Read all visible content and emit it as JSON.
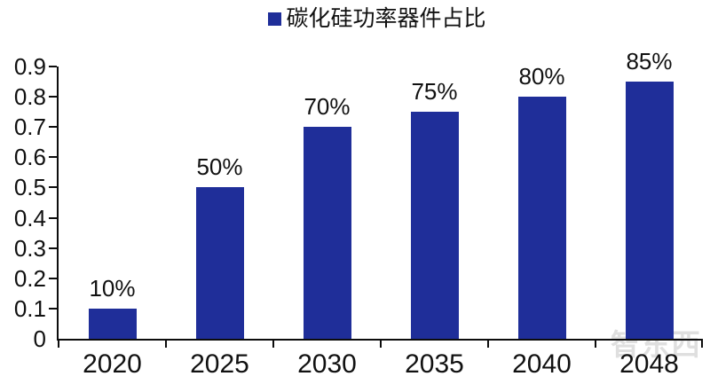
{
  "legend": {
    "label": "碳化硅功率器件占比",
    "marker_color": "#1f2e99"
  },
  "watermark": {
    "text": "智东西"
  },
  "chart_data": {
    "type": "bar",
    "title": "",
    "series_name": "碳化硅功率器件占比",
    "categories": [
      "2020",
      "2025",
      "2030",
      "2035",
      "2040",
      "2048"
    ],
    "values": [
      0.1,
      0.5,
      0.7,
      0.75,
      0.8,
      0.85
    ],
    "data_labels": [
      "10%",
      "50%",
      "70%",
      "75%",
      "80%",
      "85%"
    ],
    "xlabel": "",
    "ylabel": "",
    "ylim": [
      0,
      0.9
    ],
    "ytick_interval": 0.1,
    "ytick_labels": [
      "0",
      "0.1",
      "0.2",
      "0.3",
      "0.4",
      "0.5",
      "0.6",
      "0.7",
      "0.8",
      "0.9"
    ],
    "grid": false,
    "legend_position": "top-center",
    "bar_color": "#1f2e99",
    "axis_color": "#0d0d0d",
    "text_color": "#111111",
    "background_color": "#ffffff"
  }
}
